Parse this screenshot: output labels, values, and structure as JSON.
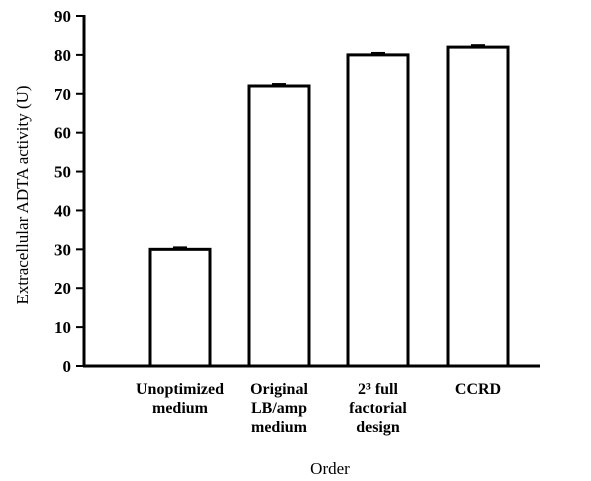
{
  "chart_data": {
    "type": "bar",
    "categories": [
      [
        "Unoptimized",
        "medium"
      ],
      [
        "Original",
        "LB/amp",
        "medium"
      ],
      [
        "2³ full",
        "factorial",
        "design"
      ],
      [
        "CCRD"
      ]
    ],
    "values": [
      30,
      72,
      80,
      82
    ],
    "errors": [
      0.5,
      0.5,
      0.5,
      0.5
    ],
    "xlabel": "Order",
    "ylabel": "Extracellular ADTA activity (U)",
    "ylim": [
      0,
      90
    ],
    "yticks": [
      0,
      10,
      20,
      30,
      40,
      50,
      60,
      70,
      80,
      90
    ],
    "grid": false,
    "colors": {
      "bar_fill": "#ffffff",
      "bar_stroke": "#000000"
    }
  }
}
